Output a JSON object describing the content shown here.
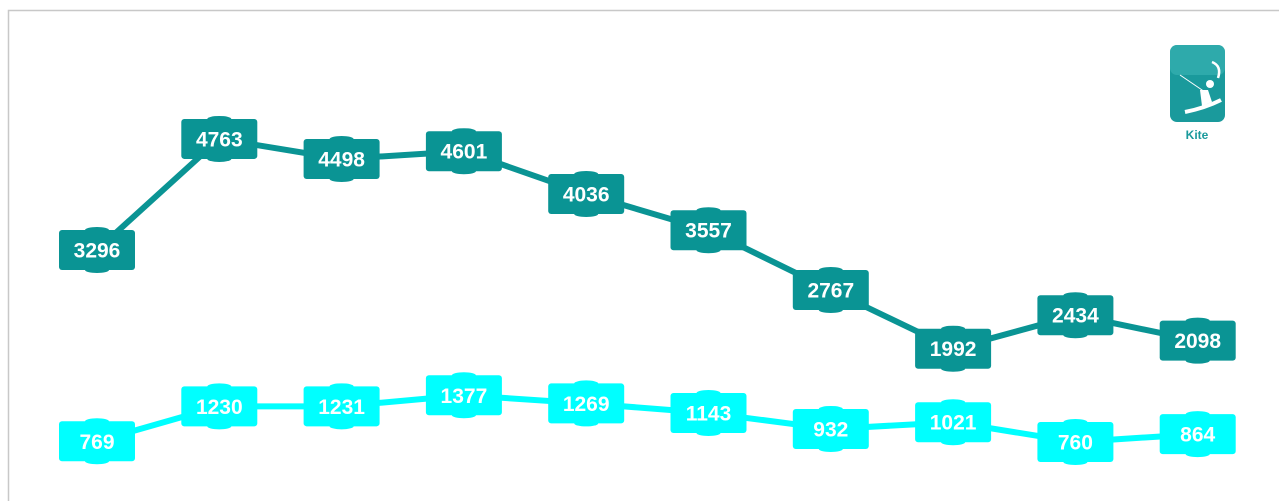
{
  "chart_data": {
    "type": "line",
    "annotations": [
      "Kite"
    ],
    "series": [
      {
        "color": "#0a9494",
        "values": [
          3296,
          4763,
          4498,
          4601,
          4036,
          3557,
          2767,
          1992,
          2434,
          2098
        ]
      },
      {
        "color": "#00ffff",
        "values": [
          769,
          1230,
          1231,
          1377,
          1269,
          1143,
          932,
          1021,
          760,
          864
        ]
      }
    ]
  }
}
